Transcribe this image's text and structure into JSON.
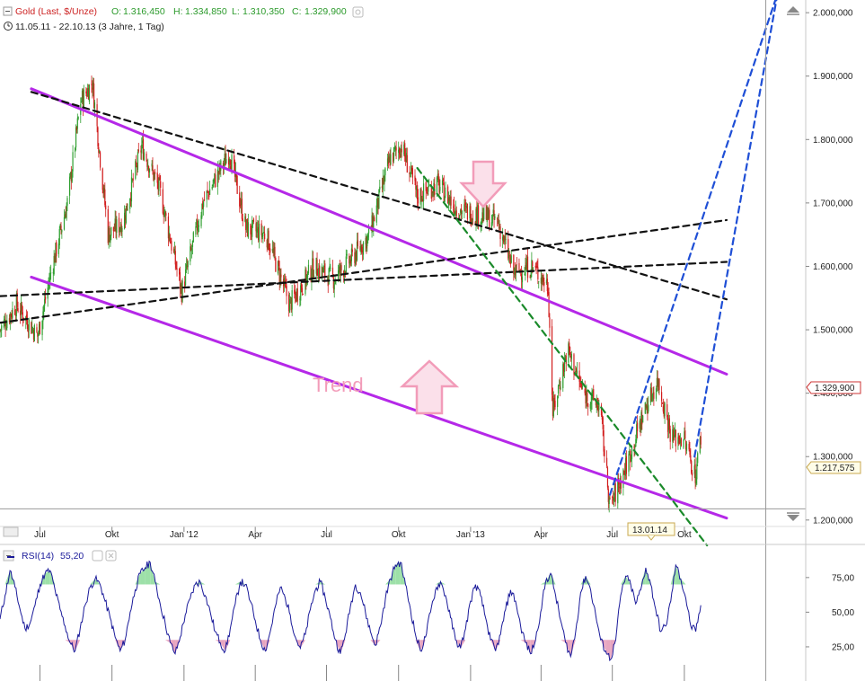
{
  "header": {
    "instrument": "Gold (Last, $/Unze)",
    "o_label": "O:",
    "o_value": "1.316,450",
    "h_label": "H:",
    "h_value": "1.334,850",
    "l_label": "L:",
    "l_value": "1.310,350",
    "c_label": "C:",
    "c_value": "1.329,900",
    "range": "11.05.11 - 22.10.13 (3 Jahre, 1 Tag)"
  },
  "annotation": {
    "trend": "Trend"
  },
  "rsi_panel": {
    "label": "RSI(14)",
    "value": "55,20"
  },
  "crosshair": {
    "date": "13.01.14",
    "price": "1.217,575"
  },
  "last_price_tag": "1.329,900",
  "colors": {
    "up": "#2e9e2e",
    "down": "#d11b1b",
    "channel": "#b528e8",
    "trend_black": "#111111",
    "trend_blue": "#1f4fd6",
    "trend_green": "#1a8a2a",
    "arrow_fill": "#f7c7d6",
    "arrow_stroke": "#f08fb0",
    "rsi": "#1a1a9a",
    "rsi_ob": "#9de0a8",
    "rsi_os": "#e8a6c0"
  },
  "chart_data": [
    {
      "type": "candlestick",
      "title": "Gold (Last, $/Unze)",
      "y_ticks": [
        "2.000,000",
        "1.900,000",
        "1.800,000",
        "1.700,000",
        "1.600,000",
        "1.500,000",
        "1.400,000",
        "1.300,000",
        "1.200,000"
      ],
      "y_tick_values": [
        2000,
        1900,
        1800,
        1700,
        1600,
        1500,
        1400,
        1300,
        1200
      ],
      "ylim": [
        1170,
        2020
      ],
      "x_ticks": [
        "Jul",
        "Okt",
        "Jan '12",
        "Apr",
        "Jul",
        "Okt",
        "Jan '13",
        "Apr",
        "Jul",
        "Okt"
      ],
      "x_tick_dates": [
        "2011-07-01",
        "2011-10-01",
        "2012-01-01",
        "2012-04-01",
        "2012-07-01",
        "2012-10-01",
        "2013-01-01",
        "2013-04-01",
        "2013-07-01",
        "2013-10-01"
      ],
      "xlim": [
        "2011-05-11",
        "2014-03-05"
      ],
      "close_series": {
        "name": "Gold",
        "dates": [
          "2011-05-11",
          "2011-06-01",
          "2011-06-28",
          "2011-07-15",
          "2011-08-05",
          "2011-08-22",
          "2011-09-06",
          "2011-09-26",
          "2011-10-15",
          "2011-11-08",
          "2011-12-01",
          "2011-12-29",
          "2012-01-25",
          "2012-02-28",
          "2012-03-20",
          "2012-04-15",
          "2012-05-15",
          "2012-06-15",
          "2012-07-10",
          "2012-08-01",
          "2012-08-25",
          "2012-09-20",
          "2012-10-05",
          "2012-10-25",
          "2012-11-20",
          "2012-12-15",
          "2013-01-15",
          "2013-02-05",
          "2013-02-25",
          "2013-03-20",
          "2013-04-10",
          "2013-04-16",
          "2013-05-05",
          "2013-05-25",
          "2013-06-15",
          "2013-06-28",
          "2013-07-20",
          "2013-08-10",
          "2013-08-28",
          "2013-09-15",
          "2013-09-30",
          "2013-10-15",
          "2013-10-22"
        ],
        "values": [
          1500,
          1540,
          1490,
          1590,
          1700,
          1860,
          1890,
          1650,
          1670,
          1790,
          1720,
          1560,
          1700,
          1780,
          1660,
          1650,
          1540,
          1600,
          1580,
          1610,
          1650,
          1770,
          1790,
          1710,
          1730,
          1690,
          1680,
          1670,
          1590,
          1600,
          1570,
          1370,
          1470,
          1400,
          1380,
          1220,
          1290,
          1370,
          1420,
          1330,
          1330,
          1270,
          1330
        ]
      },
      "trendlines": [
        {
          "name": "channel-upper",
          "color": "#b528e8",
          "style": "solid",
          "points": [
            [
              "2011-06-20",
              1880
            ],
            [
              "2013-11-24",
              1430
            ]
          ]
        },
        {
          "name": "channel-lower",
          "color": "#b528e8",
          "style": "solid",
          "points": [
            [
              "2011-06-20",
              1583
            ],
            [
              "2013-11-24",
              1203
            ]
          ]
        },
        {
          "name": "black-descending",
          "color": "#111111",
          "style": "dashed",
          "points": [
            [
              "2011-06-20",
              1875
            ],
            [
              "2013-11-24",
              1548
            ]
          ]
        },
        {
          "name": "black-support-a",
          "color": "#111111",
          "style": "dashed",
          "points": [
            [
              "2011-05-11",
              1553
            ],
            [
              "2013-11-24",
              1607
            ]
          ]
        },
        {
          "name": "black-support-b",
          "color": "#111111",
          "style": "dashed",
          "points": [
            [
              "2011-05-11",
              1511
            ],
            [
              "2013-11-24",
              1673
            ]
          ]
        },
        {
          "name": "green-descending",
          "color": "#1a8a2a",
          "style": "dashed",
          "points": [
            [
              "2012-10-25",
              1755
            ],
            [
              "2013-10-30",
              1160
            ]
          ]
        },
        {
          "name": "blue-steep-1",
          "color": "#1f4fd6",
          "style": "dashed",
          "points": [
            [
              "2013-06-28",
              1240
            ],
            [
              "2014-01-28",
              2030
            ]
          ]
        },
        {
          "name": "blue-steep-2",
          "color": "#1f4fd6",
          "style": "dashed",
          "points": [
            [
              "2013-10-14",
              1300
            ],
            [
              "2014-01-28",
              2030
            ]
          ]
        }
      ],
      "annotations": [
        "Trend"
      ],
      "last_close": 1329.9,
      "crosshair_price": 1217.575,
      "crosshair_date": "2014-01-13"
    },
    {
      "type": "line",
      "title": "RSI(14)",
      "y_ticks": [
        "75,00",
        "50,00",
        "25,00"
      ],
      "y_tick_values": [
        75,
        50,
        25
      ],
      "ylim": [
        12,
        95
      ],
      "last_value": 55.2,
      "series": [
        {
          "name": "RSI(14)",
          "values": [
            45,
            62,
            80,
            68,
            52,
            38,
            42,
            55,
            70,
            78,
            80,
            66,
            52,
            40,
            28,
            22,
            38,
            55,
            68,
            74,
            70,
            58,
            46,
            32,
            22,
            30,
            50,
            66,
            78,
            82,
            86,
            72,
            56,
            42,
            28,
            20,
            32,
            48,
            60,
            70,
            72,
            62,
            50,
            36,
            28,
            22,
            38,
            56,
            72,
            70,
            58,
            44,
            30,
            22,
            36,
            54,
            68,
            60,
            48,
            32,
            24,
            34,
            52,
            66,
            72,
            60,
            46,
            30,
            20,
            34,
            54,
            70,
            64,
            50,
            36,
            26,
            40,
            60,
            74,
            84,
            86,
            70,
            52,
            34,
            22,
            32,
            50,
            66,
            72,
            62,
            46,
            30,
            24,
            38,
            58,
            70,
            62,
            46,
            30,
            22,
            34,
            52,
            66,
            58,
            40,
            28,
            20,
            30,
            50,
            72,
            78,
            62,
            44,
            28,
            18,
            36,
            64,
            76,
            66,
            48,
            30,
            22,
            16,
            30,
            62,
            76,
            70,
            56,
            66,
            82,
            70,
            52,
            36,
            40,
            58,
            84,
            74,
            60,
            40,
            36,
            55
          ]
        }
      ]
    }
  ]
}
